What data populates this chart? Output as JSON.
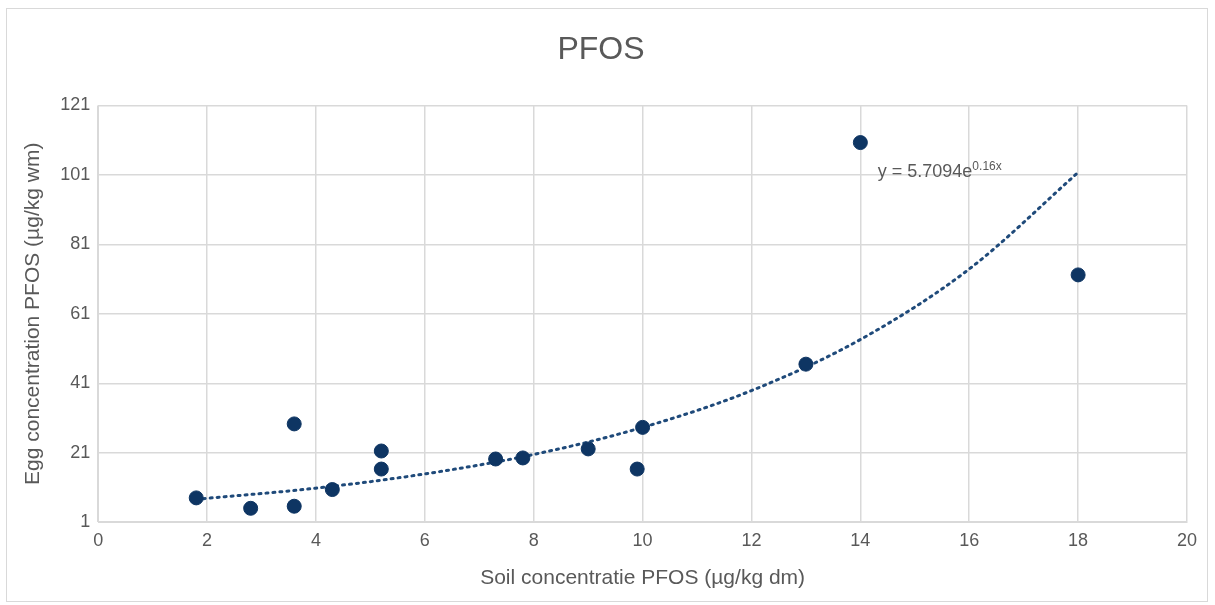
{
  "chart_data": {
    "type": "scatter",
    "title": "PFOS",
    "xlabel": "Soil concentratie PFOS (µg/kg dm)",
    "ylabel": "Egg concentration PFOS (µg/kg wm)",
    "x": [
      1.8,
      2.8,
      3.6,
      3.6,
      4.3,
      5.2,
      5.2,
      7.3,
      7.8,
      9,
      9.9,
      10,
      13,
      14,
      18
    ],
    "series": [
      {
        "color": "#0e3563",
        "values": [
          8,
          5,
          29.3,
          5.6,
          10.4,
          21.5,
          16.3,
          19.2,
          19.5,
          22.1,
          16.3,
          28.3,
          46.5,
          110.3,
          72.2
        ]
      },
      {
        "type": "line",
        "color": "#1f4a7a",
        "line_style": "dotted",
        "marker": "none",
        "x": [
          1.8,
          4,
          6,
          8,
          10,
          12,
          14,
          16,
          18
        ],
        "values": [
          7.6,
          10.8,
          14.9,
          20.5,
          28.3,
          38.9,
          53.6,
          73.9,
          101.7
        ]
      }
    ],
    "annotations": [
      "y = 5.7094e$^{0.16x}$"
    ],
    "xlim": [
      0,
      20
    ],
    "xticks": [
      0,
      2,
      4,
      6,
      8,
      10,
      12,
      14,
      16,
      18,
      20
    ],
    "ylim": [
      1,
      121
    ],
    "yticks": [
      1,
      21,
      41,
      61,
      81,
      101,
      121
    ],
    "grid": true,
    "legend": false,
    "marker": "circle"
  }
}
